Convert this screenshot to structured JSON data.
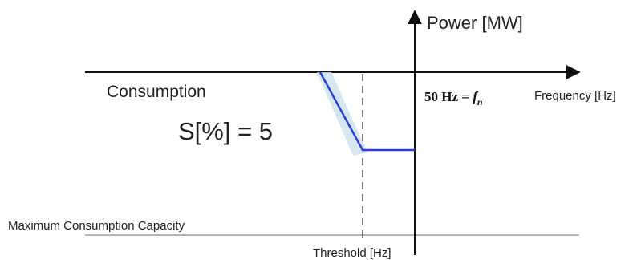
{
  "labels": {
    "power_axis": "Power [MW]",
    "frequency_axis": "Frequency [Hz]",
    "nominal_prefix": "50 Hz = ",
    "nominal_symbol": "f",
    "nominal_subscript": "n",
    "consumption": "Consumption",
    "droop": "S[%] = 5",
    "max_capacity": "Maximum Consumption Capacity",
    "threshold": "Threshold [Hz]"
  },
  "colors": {
    "axis": "#111111",
    "curve": "#2b3fe0",
    "curve_shadow": "#cfe3f0",
    "reference_line": "#999999",
    "dashed_line": "#555555"
  }
}
